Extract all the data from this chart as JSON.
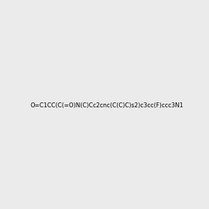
{
  "smiles": "O=C1CC(C(=O)N(C)Cc2cnc(C(C)C)s2)c3cc(F)ccc3N1",
  "title": "",
  "img_size": [
    300,
    300
  ],
  "background_color": "#ebebeb",
  "atom_colors": {
    "N": "#0000ff",
    "O": "#ff0000",
    "F": "#ff00ff",
    "S": "#cccc00"
  }
}
